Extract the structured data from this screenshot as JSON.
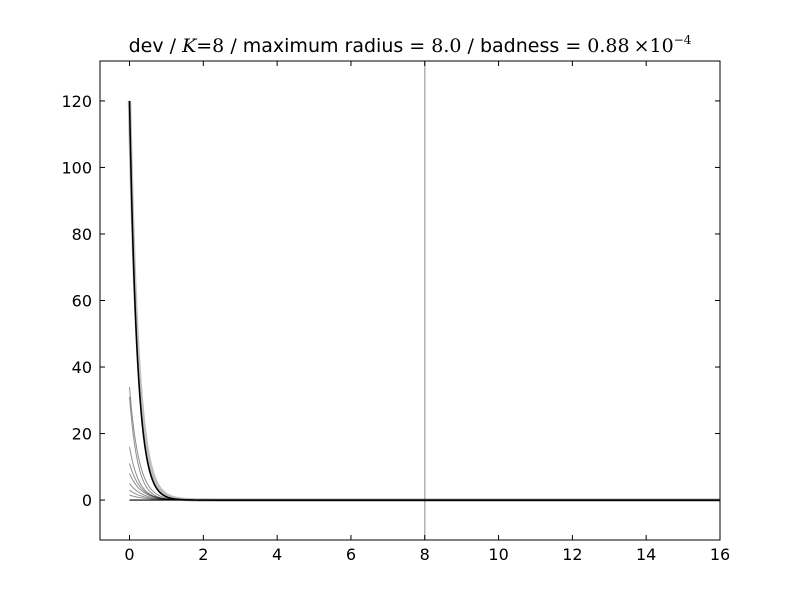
{
  "chart_data": {
    "type": "line",
    "title": {
      "prefix": "dev / ",
      "k_symbol": "K",
      "k_eq": "=8",
      "middle1": " / maximum radius = ",
      "radius": "8.0",
      "middle2": " / badness = ",
      "badness_mantissa": "0.88",
      "badness_times": "×10",
      "badness_exp": "−4"
    },
    "xlabel": "",
    "ylabel": "",
    "xlim": [
      -0.8,
      16
    ],
    "ylim": [
      -12,
      132
    ],
    "x_ticks": [
      0,
      2,
      4,
      6,
      8,
      10,
      12,
      14,
      16
    ],
    "y_ticks": [
      0,
      20,
      40,
      60,
      80,
      100,
      120
    ],
    "grid": false,
    "vertical_line": {
      "x": 8,
      "color": "#b3b3b3"
    },
    "series": [
      {
        "peak": 120,
        "decay": 4.8,
        "color": "#000000",
        "opacity": 1.0,
        "width": 1.6
      },
      {
        "peak": 120,
        "decay": 4.3,
        "color": "#000000",
        "opacity": 0.25,
        "width": 3.5
      },
      {
        "peak": 34,
        "decay": 4.0,
        "color": "#000000",
        "opacity": 0.45,
        "width": 1.0
      },
      {
        "peak": 31,
        "decay": 4.5,
        "color": "#000000",
        "opacity": 0.45,
        "width": 1.0
      },
      {
        "peak": 16,
        "decay": 4.0,
        "color": "#000000",
        "opacity": 0.45,
        "width": 1.0
      },
      {
        "peak": 11,
        "decay": 3.5,
        "color": "#000000",
        "opacity": 0.45,
        "width": 1.0
      },
      {
        "peak": 8,
        "decay": 3.2,
        "color": "#000000",
        "opacity": 0.45,
        "width": 1.0
      },
      {
        "peak": 5,
        "decay": 3.0,
        "color": "#000000",
        "opacity": 0.45,
        "width": 1.0
      },
      {
        "peak": 3,
        "decay": 2.8,
        "color": "#000000",
        "opacity": 0.45,
        "width": 1.0
      },
      {
        "peak": 1.5,
        "decay": 2.5,
        "color": "#000000",
        "opacity": 0.45,
        "width": 1.0
      }
    ],
    "baseline": {
      "y": 0,
      "color": "#000000"
    }
  }
}
